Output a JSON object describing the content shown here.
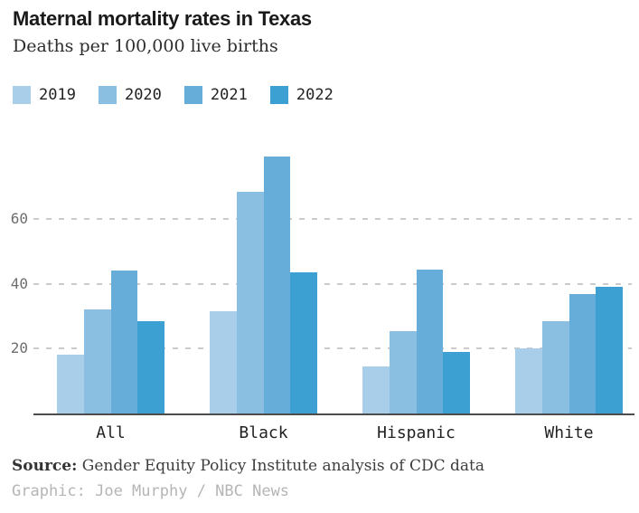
{
  "header": {
    "title": "Maternal mortality rates in Texas",
    "subtitle": "Deaths per 100,000 live births"
  },
  "chart_data": {
    "type": "bar",
    "title": "Maternal mortality rates in Texas",
    "subtitle": "Deaths per 100,000 live births",
    "categories": [
      "All",
      "Black",
      "Hispanic",
      "White"
    ],
    "series": [
      {
        "name": "2019",
        "color": "#a9cee9",
        "values": [
          18.2,
          31.6,
          14.5,
          20.0
        ]
      },
      {
        "name": "2020",
        "color": "#8bbfe2",
        "values": [
          32.0,
          68.5,
          25.5,
          28.4
        ]
      },
      {
        "name": "2021",
        "color": "#66aed9",
        "values": [
          44.0,
          79.4,
          44.5,
          37.0
        ]
      },
      {
        "name": "2022",
        "color": "#3da0d2",
        "values": [
          28.5,
          43.6,
          18.9,
          39.1
        ]
      }
    ],
    "xlabel": "",
    "ylabel": "Deaths per 100,000 live births",
    "yticks": [
      20,
      40,
      60
    ],
    "ylim": [
      0,
      86
    ],
    "grid": "horizontal-dashed",
    "gridline_color": "#cbcbcb",
    "axis_line_color": "#4d4d4d",
    "legend_position": "top-left"
  },
  "footer": {
    "source_label": "Source:",
    "source_text": " Gender Equity Policy Institute analysis of CDC data",
    "credit": "Graphic: Joe Murphy / NBC News"
  }
}
